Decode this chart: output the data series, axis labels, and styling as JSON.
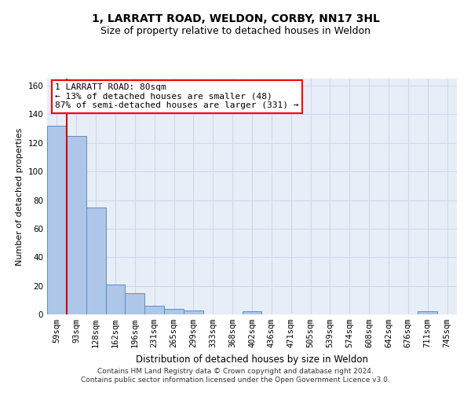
{
  "title": "1, LARRATT ROAD, WELDON, CORBY, NN17 3HL",
  "subtitle": "Size of property relative to detached houses in Weldon",
  "xlabel": "Distribution of detached houses by size in Weldon",
  "ylabel": "Number of detached properties",
  "categories": [
    "59sqm",
    "93sqm",
    "128sqm",
    "162sqm",
    "196sqm",
    "231sqm",
    "265sqm",
    "299sqm",
    "333sqm",
    "368sqm",
    "402sqm",
    "436sqm",
    "471sqm",
    "505sqm",
    "539sqm",
    "574sqm",
    "608sqm",
    "642sqm",
    "676sqm",
    "711sqm",
    "745sqm"
  ],
  "values": [
    132,
    125,
    75,
    21,
    15,
    6,
    4,
    3,
    0,
    0,
    2,
    0,
    0,
    0,
    0,
    0,
    0,
    0,
    0,
    2,
    0
  ],
  "bar_color": "#aec6e8",
  "bar_edge_color": "#5a8fc2",
  "marker_color": "#cc0000",
  "annotation_line1": "1 LARRATT ROAD: 80sqm",
  "annotation_line2": "← 13% of detached houses are smaller (48)",
  "annotation_line3": "87% of semi-detached houses are larger (331) →",
  "ylim": [
    0,
    165
  ],
  "yticks": [
    0,
    20,
    40,
    60,
    80,
    100,
    120,
    140,
    160
  ],
  "grid_color": "#d0d8e8",
  "bg_color": "#e8eef8",
  "footer": "Contains HM Land Registry data © Crown copyright and database right 2024.\nContains public sector information licensed under the Open Government Licence v3.0.",
  "title_fontsize": 10,
  "subtitle_fontsize": 9,
  "xlabel_fontsize": 8.5,
  "ylabel_fontsize": 8,
  "tick_fontsize": 7.5,
  "annotation_fontsize": 8,
  "footer_fontsize": 6.5
}
